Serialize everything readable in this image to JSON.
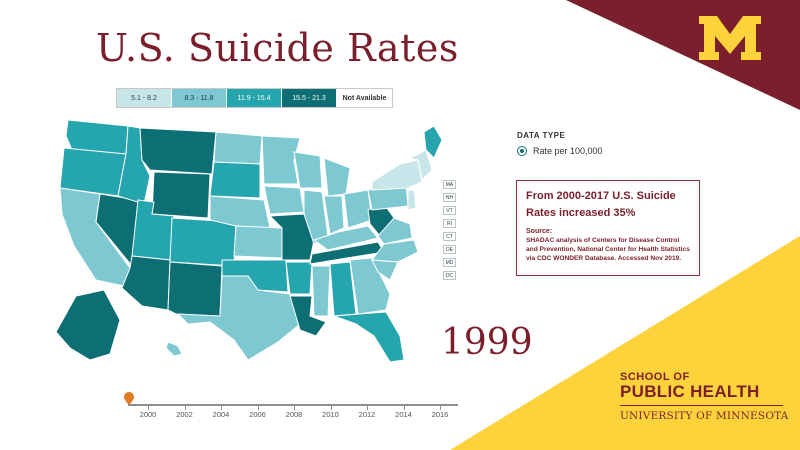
{
  "title": "U.S. Suicide Rates",
  "legend": [
    {
      "label": "5.1 - 8.2",
      "color": "#c8e6ea"
    },
    {
      "label": "8.3 - 11.8",
      "color": "#7ec8d2"
    },
    {
      "label": "11.9 - 15.4",
      "color": "#25a5ad"
    },
    {
      "label": "15.5 - 21.3",
      "color": "#0d6e74"
    },
    {
      "label": "Not Available",
      "color": "#ffffff"
    }
  ],
  "data_type": {
    "heading": "DATA TYPE",
    "option": "Rate per 100,000"
  },
  "info": {
    "headline": "From 2000-2017 U.S. Suicide Rates increased 35%",
    "source_label": "Source:",
    "source_text": "SHADAC analysis of Centers for Disease Control and Prevention, National Center for Health Statistics via CDC WONDER Database. Accessed Nov 2019."
  },
  "small_states": [
    "MA",
    "NH",
    "VT",
    "RI",
    "CT",
    "DE",
    "MD",
    "DC"
  ],
  "year": "1999",
  "timeline": {
    "labels": [
      "2000",
      "2002",
      "2004",
      "2006",
      "2008",
      "2010",
      "2012",
      "2014",
      "2016"
    ],
    "current": 1999
  },
  "brand": {
    "logo_letter": "M",
    "line1": "SCHOOL OF",
    "line2": "PUBLIC HEALTH",
    "line3": "UNIVERSITY OF MINNESOTA",
    "maroon": "#7a1f2b",
    "gold": "#fdd23a"
  }
}
